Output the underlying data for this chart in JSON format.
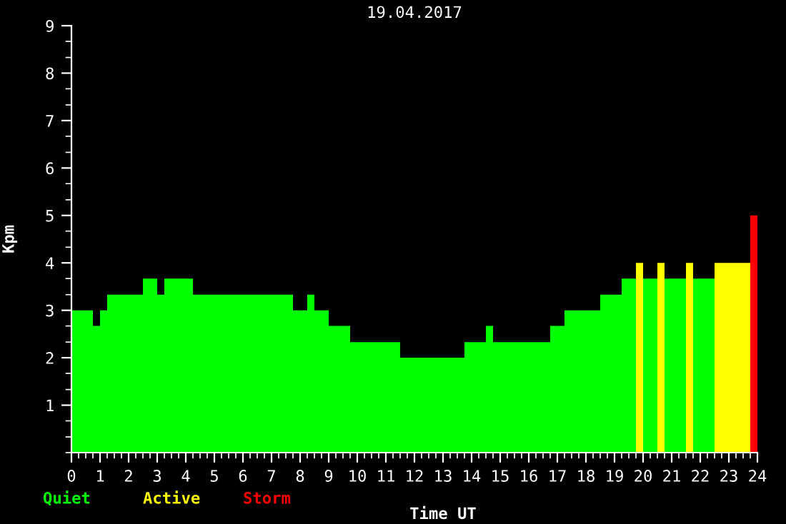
{
  "chart_data": {
    "type": "histogram",
    "title": "19.04.2017",
    "xlabel": "Time UT",
    "ylabel": "Kpm",
    "bins": [
      0,
      0.75,
      1,
      1.25,
      2.5,
      3,
      3.25,
      4.25,
      7.75,
      8.25,
      8.5,
      9,
      9.75,
      11.5,
      13.75,
      14.5,
      14.75,
      16.75,
      17.25,
      18.5,
      19.25,
      19.75,
      20,
      20.5,
      20.75,
      21.5,
      21.75,
      22.5,
      23.75,
      24
    ],
    "series": [
      {
        "name": "Quiet",
        "color": "#00ff00",
        "values": [
          3,
          2.67,
          3,
          3.33,
          3.67,
          3.33,
          3.67,
          3.33,
          3,
          3.33,
          3,
          2.67,
          2.33,
          2,
          2.33,
          2.67,
          2.33,
          2.67,
          3,
          3.33,
          3.67,
          null,
          3.67,
          null,
          3.67,
          null,
          3.67,
          null,
          null
        ]
      },
      {
        "name": "Active",
        "color": "#ffff00",
        "values": [
          null,
          null,
          null,
          null,
          null,
          null,
          null,
          null,
          null,
          null,
          null,
          null,
          null,
          null,
          null,
          null,
          null,
          null,
          null,
          null,
          null,
          4,
          null,
          4,
          null,
          4,
          null,
          4,
          null
        ]
      },
      {
        "name": "Storm",
        "color": "#ff0000",
        "values": [
          null,
          null,
          null,
          null,
          null,
          null,
          null,
          null,
          null,
          null,
          null,
          null,
          null,
          null,
          null,
          null,
          null,
          null,
          null,
          null,
          null,
          null,
          null,
          null,
          null,
          null,
          null,
          null,
          5
        ]
      }
    ],
    "xlim": [
      0,
      24
    ],
    "ylim": [
      0,
      9
    ],
    "xticks": [
      0,
      {
        "value": 0.25,
        "label": null
      },
      {
        "value": 0.5,
        "label": null
      },
      {
        "value": 0.75,
        "label": null
      },
      1,
      {
        "value": 1.25,
        "label": null
      },
      {
        "value": 1.5,
        "label": null
      },
      {
        "value": 1.75,
        "label": null
      },
      2,
      {
        "value": 2.25,
        "label": null
      },
      {
        "value": 2.5,
        "label": null
      },
      {
        "value": 2.75,
        "label": null
      },
      3,
      {
        "value": 3.25,
        "label": null
      },
      {
        "value": 3.5,
        "label": null
      },
      {
        "value": 3.75,
        "label": null
      },
      4,
      {
        "value": 4.25,
        "label": null
      },
      {
        "value": 4.5,
        "label": null
      },
      {
        "value": 4.75,
        "label": null
      },
      5,
      {
        "value": 5.25,
        "label": null
      },
      {
        "value": 5.5,
        "label": null
      },
      {
        "value": 5.75,
        "label": null
      },
      6,
      {
        "value": 6.25,
        "label": null
      },
      {
        "value": 6.5,
        "label": null
      },
      {
        "value": 6.75,
        "label": null
      },
      7,
      {
        "value": 7.25,
        "label": null
      },
      {
        "value": 7.5,
        "label": null
      },
      {
        "value": 7.75,
        "label": null
      },
      8,
      {
        "value": 8.25,
        "label": null
      },
      {
        "value": 8.5,
        "label": null
      },
      {
        "value": 8.75,
        "label": null
      },
      9,
      {
        "value": 9.25,
        "label": null
      },
      {
        "value": 9.5,
        "label": null
      },
      {
        "value": 9.75,
        "label": null
      },
      10,
      {
        "value": 10.25,
        "label": null
      },
      {
        "value": 10.5,
        "label": null
      },
      {
        "value": 10.75,
        "label": null
      },
      11,
      {
        "value": 11.25,
        "label": null
      },
      {
        "value": 11.5,
        "label": null
      },
      {
        "value": 11.75,
        "label": null
      },
      12,
      {
        "value": 12.25,
        "label": null
      },
      {
        "value": 12.5,
        "label": null
      },
      {
        "value": 12.75,
        "label": null
      },
      13,
      {
        "value": 13.25,
        "label": null
      },
      {
        "value": 13.5,
        "label": null
      },
      {
        "value": 13.75,
        "label": null
      },
      14,
      {
        "value": 14.25,
        "label": null
      },
      {
        "value": 14.5,
        "label": null
      },
      {
        "value": 14.75,
        "label": null
      },
      15,
      {
        "value": 15.25,
        "label": null
      },
      {
        "value": 15.5,
        "label": null
      },
      {
        "value": 15.75,
        "label": null
      },
      16,
      {
        "value": 16.25,
        "label": null
      },
      {
        "value": 16.5,
        "label": null
      },
      {
        "value": 16.75,
        "label": null
      },
      17,
      {
        "value": 17.25,
        "label": null
      },
      {
        "value": 17.5,
        "label": null
      },
      {
        "value": 17.75,
        "label": null
      },
      18,
      {
        "value": 18.25,
        "label": null
      },
      {
        "value": 18.5,
        "label": null
      },
      {
        "value": 18.75,
        "label": null
      },
      19,
      {
        "value": 19.25,
        "label": null
      },
      {
        "value": 19.5,
        "label": null
      },
      {
        "value": 19.75,
        "label": null
      },
      20,
      {
        "value": 20.25,
        "label": null
      },
      {
        "value": 20.5,
        "label": null
      },
      {
        "value": 20.75,
        "label": null
      },
      21,
      {
        "value": 21.25,
        "label": null
      },
      {
        "value": 21.5,
        "label": null
      },
      {
        "value": 21.75,
        "label": null
      },
      22,
      {
        "value": 22.25,
        "label": null
      },
      {
        "value": 22.5,
        "label": null
      },
      {
        "value": 22.75,
        "label": null
      },
      23,
      {
        "value": 23.25,
        "label": null
      },
      {
        "value": 23.5,
        "label": null
      },
      {
        "value": 23.75,
        "label": null
      },
      24
    ],
    "yticks": [
      {
        "value": 0,
        "label": null
      },
      {
        "value": 0.33,
        "label": null
      },
      {
        "value": 0.67,
        "label": null
      },
      1,
      {
        "value": 1.33,
        "label": null
      },
      {
        "value": 1.67,
        "label": null
      },
      2,
      {
        "value": 2.33,
        "label": null
      },
      {
        "value": 2.67,
        "label": null
      },
      3,
      {
        "value": 3.33,
        "label": null
      },
      {
        "value": 3.67,
        "label": null
      },
      4,
      {
        "value": 4.33,
        "label": null
      },
      {
        "value": 4.67,
        "label": null
      },
      5,
      {
        "value": 5.33,
        "label": null
      },
      {
        "value": 5.67,
        "label": null
      },
      6,
      {
        "value": 6.33,
        "label": null
      },
      {
        "value": 6.67,
        "label": null
      },
      7,
      {
        "value": 7.33,
        "label": null
      },
      {
        "value": 7.67,
        "label": null
      },
      8,
      {
        "value": 8.33,
        "label": null
      },
      {
        "value": 8.67,
        "label": null
      },
      9
    ],
    "legend": "bottom"
  }
}
